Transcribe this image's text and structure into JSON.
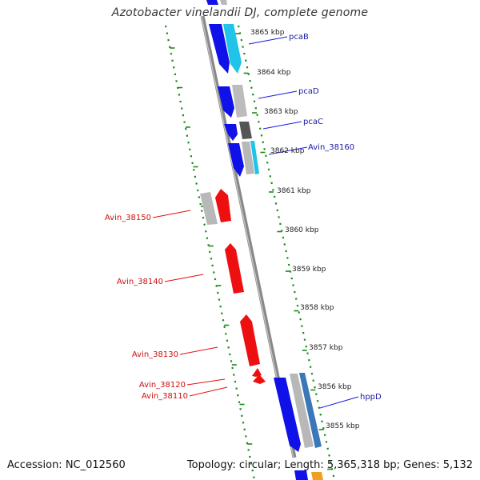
{
  "title": "Azotobacter vinelandii DJ, complete genome",
  "footer": {
    "accession": "Accession: NC_012560",
    "summary": "Topology: circular; Length: 5,365,318 bp; Genes: 5,132"
  },
  "kbp_ticks": [
    "3865 kbp",
    "3864 kbp",
    "3863 kbp",
    "3862 kbp",
    "3861 kbp",
    "3860 kbp",
    "3859 kbp",
    "3858 kbp",
    "3857 kbp",
    "3856 kbp",
    "3855 kbp"
  ],
  "right_genes": [
    "pcaB",
    "pcaD",
    "pcaC",
    "Avin_38160",
    "hppD"
  ],
  "left_genes": [
    "Avin_38150",
    "Avin_38140",
    "Avin_38130",
    "Avin_38120",
    "Avin_38110"
  ],
  "colors": {
    "forward_strand": "#1010e8",
    "forward_strand_light": "#20c4e8",
    "reverse_strand": "#ee1010",
    "gray": "#b8b8b8",
    "dark_gray": "#555555",
    "orange": "#f0a020",
    "dots": "#1a8a1a",
    "right_label": "#1a1aa0",
    "left_label": "#cc1010"
  }
}
